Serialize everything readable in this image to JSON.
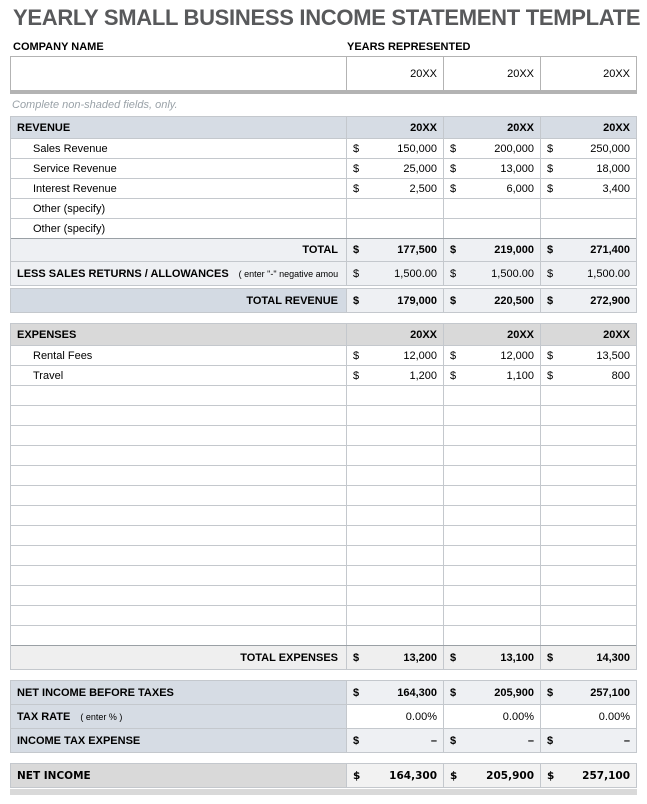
{
  "page": {
    "title": "YEARLY SMALL BUSINESS INCOME STATEMENT TEMPLATE",
    "company_label": "COMPANY NAME",
    "years_label": "YEARS REPRESENTED",
    "company_value": "",
    "year_values": [
      "20XX",
      "20XX",
      "20XX"
    ],
    "note": "Complete non-shaded fields, only.",
    "currency_symbol": "$"
  },
  "colors": {
    "title_text": "#58595b",
    "blue_header_bg": "#d6dce4",
    "gray_header_bg": "#d9d9d9",
    "shaded_total_bg": "#eef0f3",
    "net_income_values_bg": "#f2f2f2",
    "grid_border": "#c4c8cd",
    "heavy_border": "#b3b3b3",
    "note_text": "#9aa2a8"
  },
  "revenue": {
    "header": "REVENUE",
    "year_headers": [
      "20XX",
      "20XX",
      "20XX"
    ],
    "rows": [
      {
        "label": "Sales Revenue",
        "currency": true,
        "values": [
          "150,000",
          "200,000",
          "250,000"
        ]
      },
      {
        "label": "Service Revenue",
        "currency": true,
        "values": [
          "25,000",
          "13,000",
          "18,000"
        ]
      },
      {
        "label": "Interest Revenue",
        "currency": true,
        "values": [
          "2,500",
          "6,000",
          "3,400"
        ]
      },
      {
        "label": "Other (specify)",
        "currency": false,
        "values": [
          "",
          "",
          ""
        ]
      },
      {
        "label": "Other (specify)",
        "currency": false,
        "values": [
          "",
          "",
          ""
        ]
      }
    ],
    "total_row": {
      "label": "TOTAL",
      "values": [
        "177,500",
        "219,000",
        "271,400"
      ]
    },
    "less_row": {
      "label": "LESS SALES RETURNS / ALLOWANCES",
      "hint": "( enter \"-\" negative amou",
      "values": [
        "1,500.00",
        "1,500.00",
        "1,500.00"
      ]
    },
    "total_revenue_row": {
      "label": "TOTAL REVENUE",
      "values": [
        "179,000",
        "220,500",
        "272,900"
      ]
    }
  },
  "expenses": {
    "header": "EXPENSES",
    "year_headers": [
      "20XX",
      "20XX",
      "20XX"
    ],
    "rows": [
      {
        "label": "Rental Fees",
        "currency": true,
        "values": [
          "12,000",
          "12,000",
          "13,500"
        ]
      },
      {
        "label": "Travel",
        "currency": true,
        "values": [
          "1,200",
          "1,100",
          "800"
        ]
      }
    ],
    "empty_row_count": 13,
    "total_row": {
      "label": "TOTAL EXPENSES",
      "values": [
        "13,200",
        "13,100",
        "14,300"
      ]
    }
  },
  "summary": {
    "net_income_before_taxes": {
      "label": "NET INCOME BEFORE TAXES",
      "values": [
        "164,300",
        "205,900",
        "257,100"
      ]
    },
    "tax_rate": {
      "label": "TAX RATE",
      "hint": "( enter % )",
      "values": [
        "0.00%",
        "0.00%",
        "0.00%"
      ]
    },
    "income_tax_expense": {
      "label": "INCOME TAX EXPENSE",
      "values": [
        "–",
        "–",
        "–"
      ]
    },
    "net_income": {
      "label": "NET INCOME",
      "values": [
        "164,300",
        "205,900",
        "257,100"
      ]
    }
  }
}
